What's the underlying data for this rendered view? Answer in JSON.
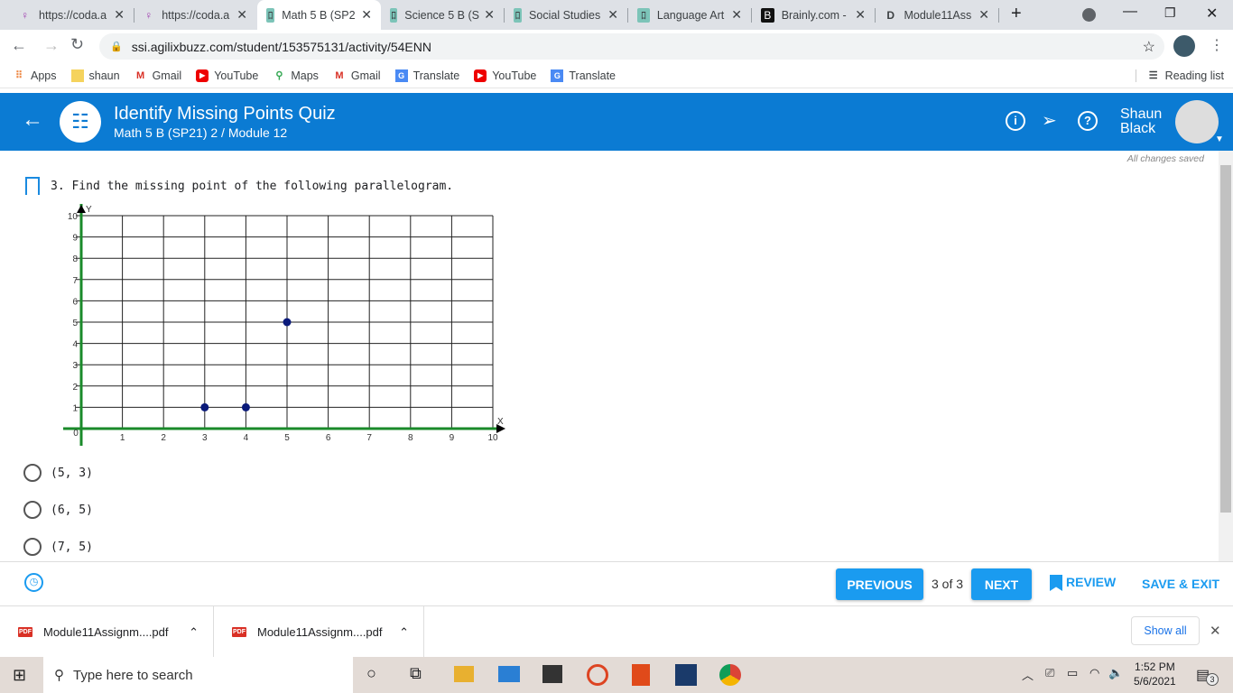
{
  "browser": {
    "tabs": [
      {
        "title": "https://coda.a",
        "icon": "bulb-icon"
      },
      {
        "title": "https://coda.a",
        "icon": "bulb-icon"
      },
      {
        "title": "Math 5 B (SP2",
        "icon": "agilix-icon",
        "active": true
      },
      {
        "title": "Science 5 B (S",
        "icon": "agilix-icon"
      },
      {
        "title": "Social Studies",
        "icon": "agilix-icon"
      },
      {
        "title": "Language Art",
        "icon": "agilix-icon"
      },
      {
        "title": "Brainly.com -",
        "icon": "brainly-icon"
      },
      {
        "title": "Module11Ass",
        "icon": "docs-icon"
      }
    ],
    "url": "ssi.agilixbuzz.com/student/153575131/activity/54ENN",
    "bookmarks": [
      {
        "label": "Apps",
        "icon": "apps-icon"
      },
      {
        "label": "shaun",
        "icon": "folder-icon"
      },
      {
        "label": "Gmail",
        "icon": "gmail-icon"
      },
      {
        "label": "YouTube",
        "icon": "youtube-icon"
      },
      {
        "label": "Maps",
        "icon": "maps-icon"
      },
      {
        "label": "Gmail",
        "icon": "gmail-icon"
      },
      {
        "label": "Translate",
        "icon": "translate-icon"
      },
      {
        "label": "YouTube",
        "icon": "youtube-icon"
      },
      {
        "label": "Translate",
        "icon": "translate-icon"
      }
    ],
    "reading_list": "Reading list"
  },
  "header": {
    "title": "Identify Missing Points Quiz",
    "subtitle": "Math 5 B (SP21) 2 / Module 12",
    "user_first": "Shaun",
    "user_last": "Black",
    "brand_color": "#0b7bd3"
  },
  "status": "All changes saved",
  "question": {
    "text": "3. Find the missing point of the following parallelogram.",
    "options": [
      "(5, 3)",
      "(6, 5)",
      "(7, 5)"
    ]
  },
  "chart_data": {
    "type": "scatter",
    "xlabel": "X",
    "ylabel": "Y",
    "xlim": [
      0,
      10
    ],
    "ylim": [
      0,
      10
    ],
    "xticks": [
      "0",
      "1",
      "2",
      "3",
      "4",
      "5",
      "6",
      "7",
      "8",
      "9",
      "10"
    ],
    "yticks": [
      "1",
      "2",
      "3",
      "4",
      "5",
      "6",
      "7",
      "8",
      "9",
      "10"
    ],
    "grid": true,
    "axis_color": "#1a8a2a",
    "point_color": "#0a1a7a",
    "points": [
      {
        "x": 3,
        "y": 1
      },
      {
        "x": 4,
        "y": 1
      },
      {
        "x": 5,
        "y": 5
      }
    ]
  },
  "footer": {
    "previous": "PREVIOUS",
    "page": "3 of 3",
    "next": "NEXT",
    "review": "REVIEW",
    "save_exit": "SAVE & EXIT",
    "accent": "#1a9bf0"
  },
  "downloads": {
    "items": [
      "Module11Assignm....pdf",
      "Module11Assignm....pdf"
    ],
    "show_all": "Show all"
  },
  "taskbar": {
    "search_placeholder": "Type here to search",
    "time": "1:52 PM",
    "date": "5/6/2021",
    "notifications": "3"
  }
}
